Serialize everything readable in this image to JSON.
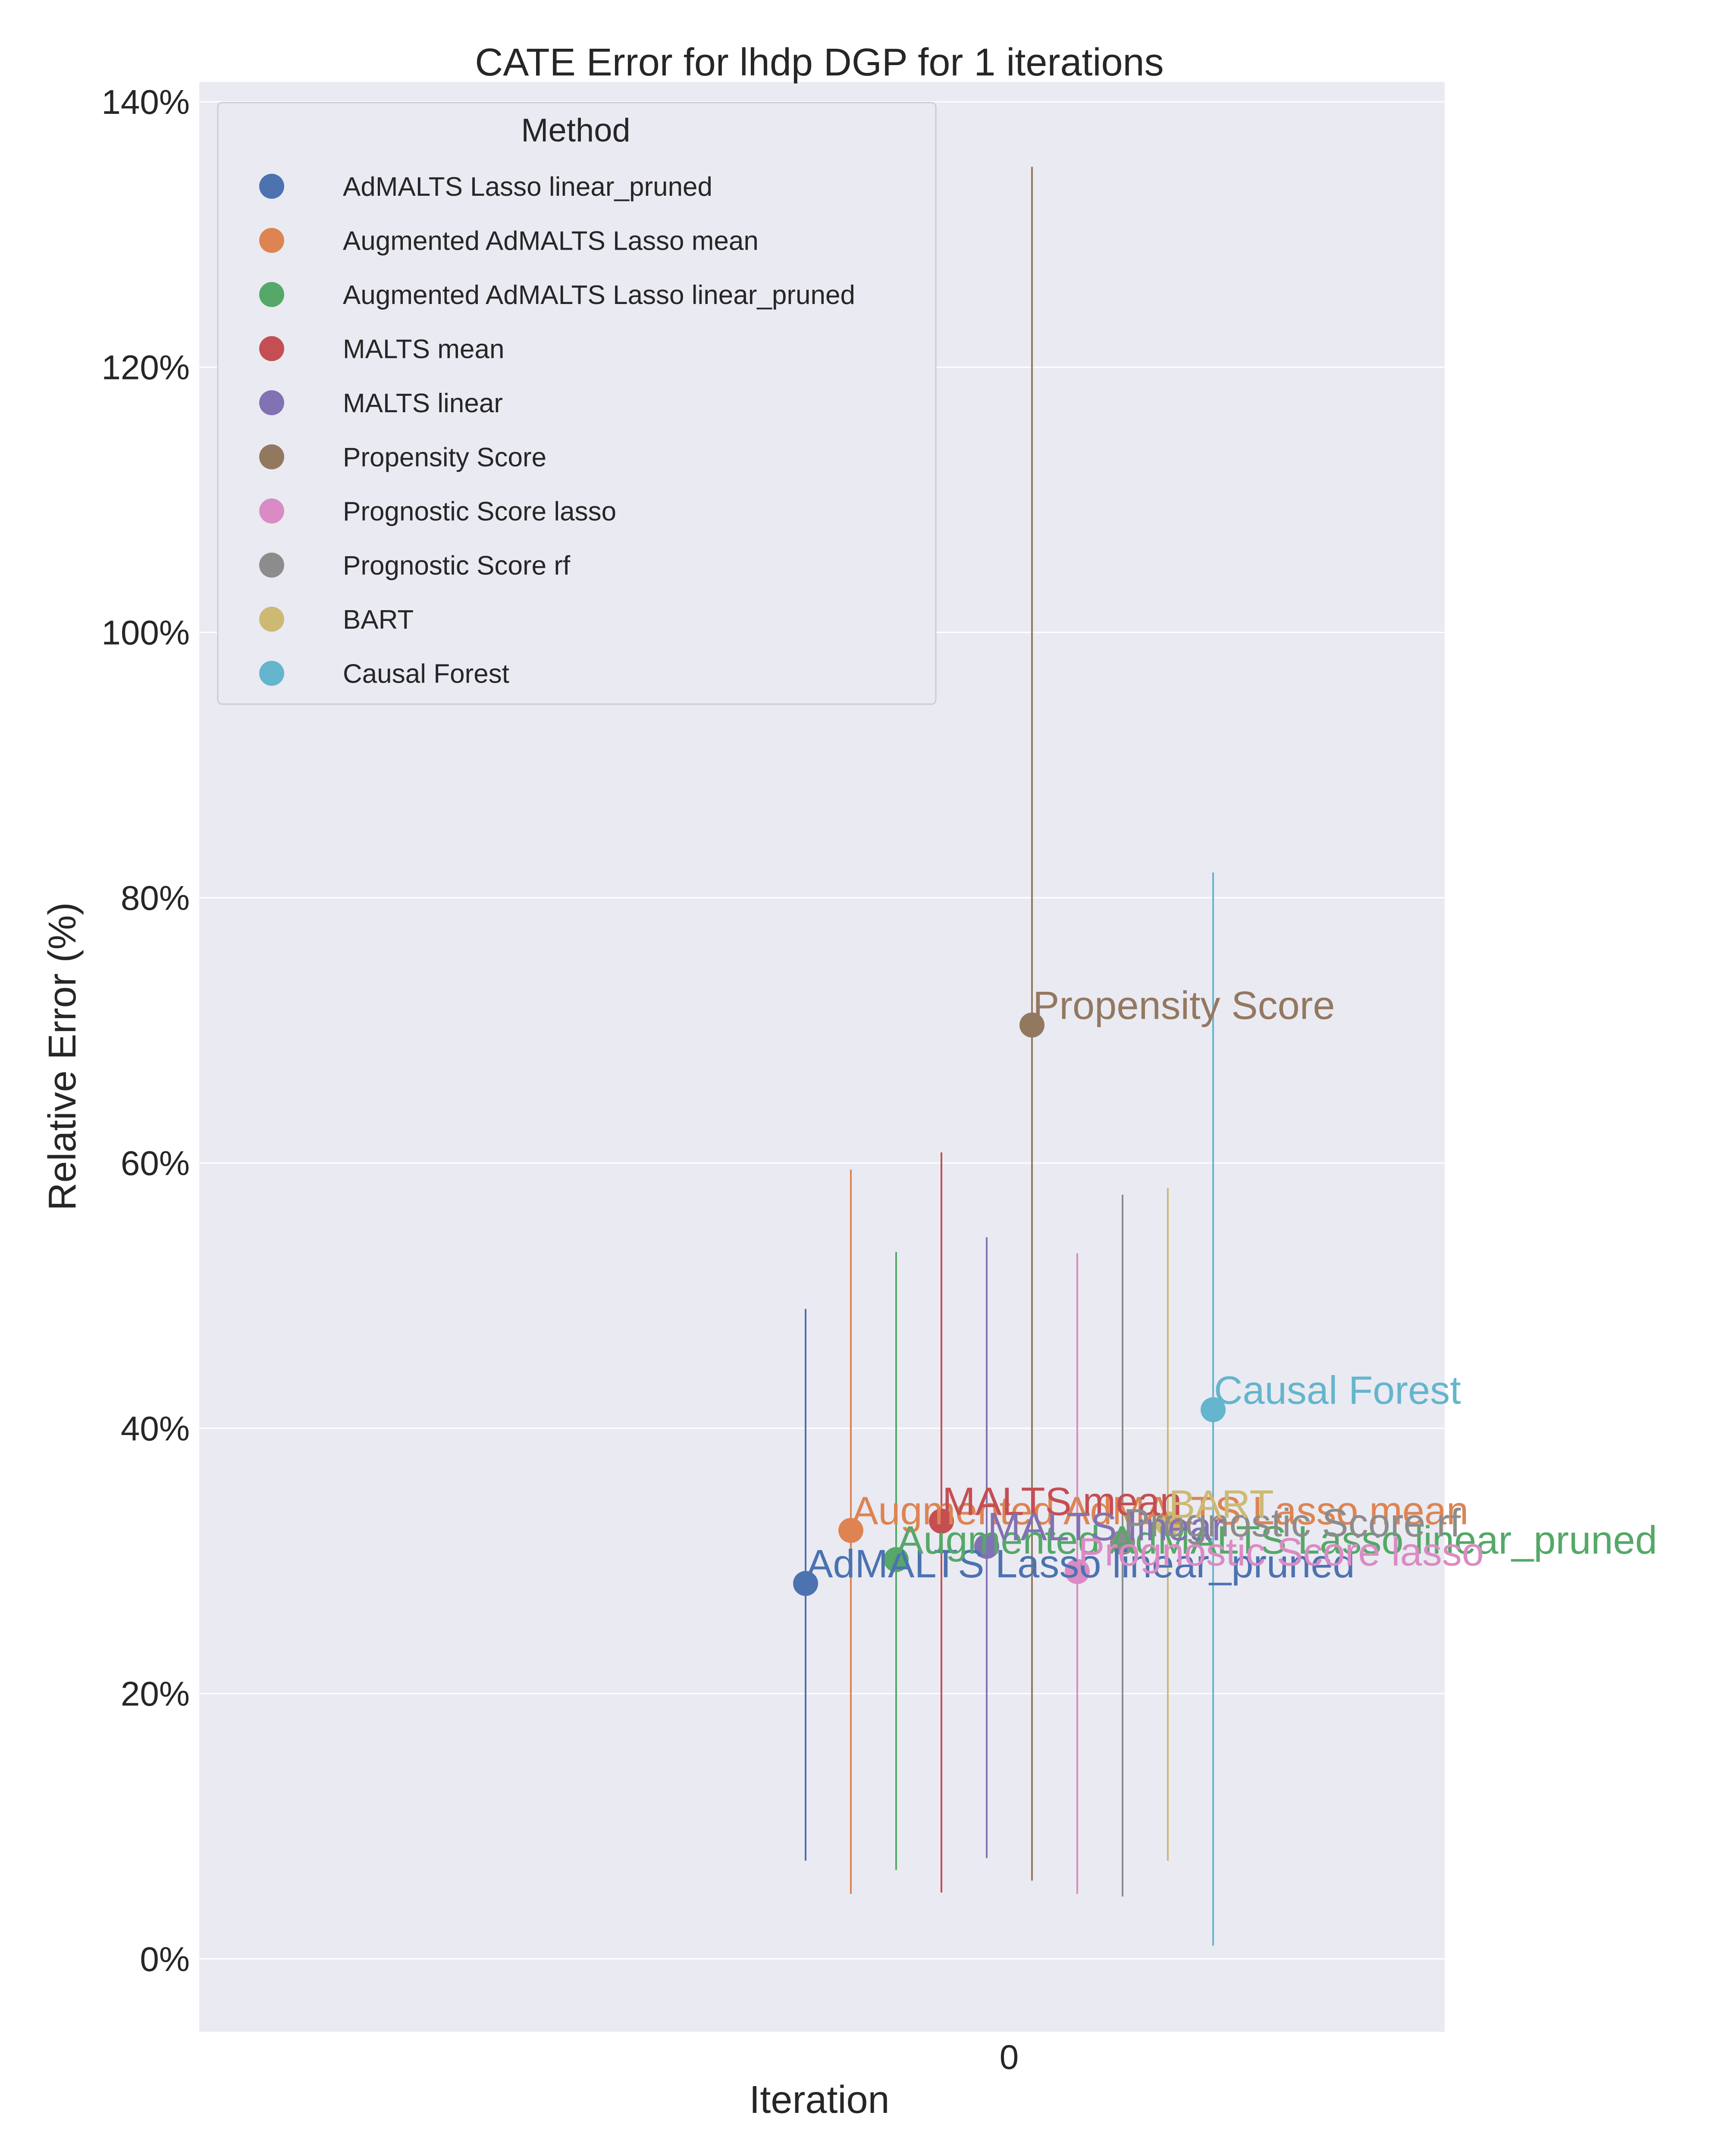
{
  "chart_data": {
    "type": "scatter",
    "title": "CATE Error for lhdp DGP for 1 iterations",
    "xlabel": "Iteration",
    "ylabel": "Relative Error (%)",
    "x_ticks": [
      "0"
    ],
    "y_ticks": [
      "0%",
      "20%",
      "40%",
      "60%",
      "80%",
      "100%",
      "120%",
      "140%"
    ],
    "ylim": [
      -5.5,
      141.5
    ],
    "grid": true,
    "legend": {
      "title": "Method",
      "placement": "top-left"
    },
    "series": [
      {
        "name": "AdMALTS Lasso linear_pruned",
        "color": "#4c72b0",
        "value": 28.3,
        "low": 7.4,
        "high": 49.0
      },
      {
        "name": "Augmented AdMALTS Lasso mean",
        "color": "#dd8452",
        "value": 32.3,
        "low": 4.9,
        "high": 59.5
      },
      {
        "name": "Augmented AdMALTS Lasso linear_pruned",
        "color": "#55a868",
        "value": 30.1,
        "low": 6.7,
        "high": 53.3
      },
      {
        "name": "MALTS mean",
        "color": "#c44e52",
        "value": 33.0,
        "low": 5.0,
        "high": 60.8
      },
      {
        "name": "MALTS linear",
        "color": "#8172b3",
        "value": 31.1,
        "low": 7.6,
        "high": 54.4
      },
      {
        "name": "Propensity Score",
        "color": "#937860",
        "value": 70.4,
        "low": 5.9,
        "high": 135.1
      },
      {
        "name": "Prognostic Score lasso",
        "color": "#da8bc3",
        "value": 29.2,
        "low": 4.9,
        "high": 53.2
      },
      {
        "name": "Prognostic Score rf",
        "color": "#8c8c8c",
        "value": 31.4,
        "low": 4.7,
        "high": 57.6
      },
      {
        "name": "BART",
        "color": "#ccb974",
        "value": 32.8,
        "low": 7.4,
        "high": 58.1
      },
      {
        "name": "Causal Forest",
        "color": "#64b5cd",
        "value": 41.4,
        "low": 1.0,
        "high": 81.9
      }
    ]
  }
}
